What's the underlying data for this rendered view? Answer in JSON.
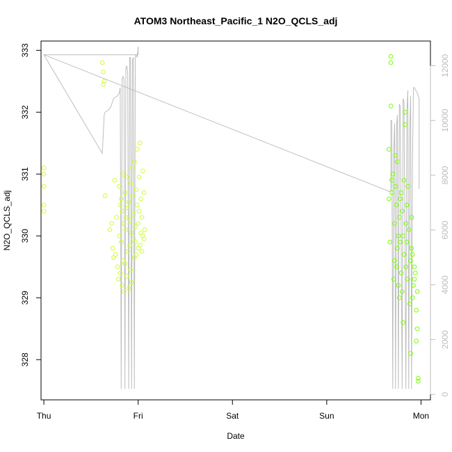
{
  "chart_data": {
    "type": "scatter",
    "title": "ATOM3 Northeast_Pacific_1 N2O_QCLS_adj",
    "xlabel": "Date",
    "ylabel": "N2O_QCLS_adj",
    "xlim": [
      -0.03,
      4.1
    ],
    "ylim": [
      327.35,
      333.15
    ],
    "y2lim": [
      -200,
      12900
    ],
    "x_ticks": [
      {
        "value": 0,
        "label": "Thu"
      },
      {
        "value": 1,
        "label": "Fri"
      },
      {
        "value": 2,
        "label": "Sat"
      },
      {
        "value": 3,
        "label": "Sun"
      },
      {
        "value": 4,
        "label": "Mon"
      }
    ],
    "y_ticks": [
      328,
      329,
      330,
      331,
      332,
      333
    ],
    "y2_ticks": [
      0,
      2000,
      4000,
      6000,
      8000,
      10000,
      12000
    ],
    "grid": false,
    "legend": "none",
    "colors": {
      "points_early": "#ccff33",
      "points_late": "#77ff00",
      "altitude": "#bdbdbd"
    },
    "series": [
      {
        "axis": "left",
        "style": "points",
        "values": [
          [
            0.0,
            331.1
          ],
          [
            0.0,
            331.0
          ],
          [
            0.0,
            330.8
          ],
          [
            0.0,
            330.5
          ],
          [
            0.0,
            330.4
          ],
          [
            0.62,
            332.8
          ],
          [
            0.63,
            332.65
          ],
          [
            0.63,
            332.45
          ],
          [
            0.64,
            332.5
          ],
          [
            0.65,
            330.65
          ],
          [
            0.7,
            330.1
          ],
          [
            0.72,
            330.2
          ],
          [
            0.73,
            329.8
          ],
          [
            0.74,
            329.65
          ],
          [
            0.75,
            330.9
          ],
          [
            0.76,
            329.7
          ],
          [
            0.77,
            330.3
          ],
          [
            0.78,
            329.5
          ],
          [
            0.79,
            329.3
          ],
          [
            0.8,
            330.0
          ],
          [
            0.8,
            330.8
          ],
          [
            0.81,
            329.4
          ],
          [
            0.81,
            330.5
          ],
          [
            0.82,
            329.9
          ],
          [
            0.82,
            330.6
          ],
          [
            0.83,
            329.2
          ],
          [
            0.83,
            330.4
          ],
          [
            0.84,
            329.6
          ],
          [
            0.84,
            331.0
          ],
          [
            0.85,
            330.2
          ],
          [
            0.85,
            329.1
          ],
          [
            0.86,
            330.7
          ],
          [
            0.86,
            329.55
          ],
          [
            0.87,
            330.3
          ],
          [
            0.87,
            330.1
          ],
          [
            0.88,
            329.35
          ],
          [
            0.88,
            330.95
          ],
          [
            0.89,
            329.75
          ],
          [
            0.89,
            330.45
          ],
          [
            0.9,
            329.15
          ],
          [
            0.9,
            330.55
          ],
          [
            0.91,
            329.85
          ],
          [
            0.91,
            330.25
          ],
          [
            0.92,
            329.45
          ],
          [
            0.92,
            330.85
          ],
          [
            0.93,
            330.05
          ],
          [
            0.93,
            329.25
          ],
          [
            0.94,
            331.1
          ],
          [
            0.94,
            330.65
          ],
          [
            0.95,
            329.95
          ],
          [
            0.95,
            330.35
          ],
          [
            0.96,
            329.65
          ],
          [
            0.96,
            331.2
          ],
          [
            0.97,
            330.15
          ],
          [
            0.97,
            329.9
          ],
          [
            0.98,
            330.75
          ],
          [
            0.98,
            329.7
          ],
          [
            0.99,
            330.5
          ],
          [
            0.99,
            331.4
          ],
          [
            1.0,
            330.2
          ],
          [
            1.0,
            329.8
          ],
          [
            1.01,
            330.95
          ],
          [
            1.01,
            330.4
          ],
          [
            1.02,
            329.85
          ],
          [
            1.02,
            331.5
          ],
          [
            1.03,
            330.6
          ],
          [
            1.03,
            330.05
          ],
          [
            1.04,
            329.75
          ],
          [
            1.04,
            330.3
          ],
          [
            1.05,
            331.05
          ],
          [
            1.05,
            330.0
          ],
          [
            1.06,
            329.95
          ],
          [
            1.06,
            330.7
          ],
          [
            1.07,
            330.1
          ],
          [
            3.68,
            332.9
          ],
          [
            3.68,
            332.8
          ],
          [
            3.68,
            332.1
          ],
          [
            3.66,
            330.6
          ],
          [
            3.66,
            331.4
          ],
          [
            3.67,
            329.9
          ],
          [
            3.69,
            330.9
          ],
          [
            3.69,
            330.7
          ],
          [
            3.7,
            331.0
          ],
          [
            3.71,
            329.3
          ],
          [
            3.72,
            330.2
          ],
          [
            3.72,
            329.6
          ],
          [
            3.73,
            331.3
          ],
          [
            3.73,
            330.8
          ],
          [
            3.74,
            329.5
          ],
          [
            3.74,
            330.5
          ],
          [
            3.75,
            331.2
          ],
          [
            3.75,
            329.8
          ],
          [
            3.76,
            330.0
          ],
          [
            3.76,
            329.2
          ],
          [
            3.77,
            330.3
          ],
          [
            3.77,
            329.0
          ],
          [
            3.78,
            330.6
          ],
          [
            3.78,
            329.9
          ],
          [
            3.79,
            329.4
          ],
          [
            3.79,
            330.7
          ],
          [
            3.8,
            329.1
          ],
          [
            3.8,
            330.4
          ],
          [
            3.81,
            328.6
          ],
          [
            3.81,
            330.0
          ],
          [
            3.82,
            329.7
          ],
          [
            3.82,
            330.9
          ],
          [
            3.83,
            332.0
          ],
          [
            3.83,
            331.8
          ],
          [
            3.84,
            330.2
          ],
          [
            3.84,
            329.5
          ],
          [
            3.85,
            330.5
          ],
          [
            3.85,
            329.9
          ],
          [
            3.86,
            330.8
          ],
          [
            3.86,
            329.3
          ],
          [
            3.87,
            330.1
          ],
          [
            3.88,
            328.9
          ],
          [
            3.89,
            329.6
          ],
          [
            3.89,
            328.1
          ],
          [
            3.9,
            330.3
          ],
          [
            3.9,
            329.8
          ],
          [
            3.91,
            329.0
          ],
          [
            3.92,
            329.2
          ],
          [
            3.93,
            329.5
          ],
          [
            3.94,
            329.4
          ],
          [
            3.95,
            328.8
          ],
          [
            3.95,
            328.3
          ],
          [
            3.96,
            329.1
          ],
          [
            3.97,
            327.7
          ],
          [
            3.97,
            327.65
          ],
          [
            3.96,
            328.5
          ],
          [
            3.93,
            329.3
          ],
          [
            3.91,
            329.7
          ]
        ]
      },
      {
        "axis": "right",
        "style": "line",
        "values": [
          [
            0.0,
            12400
          ],
          [
            0.98,
            12400
          ],
          [
            1.0,
            12400
          ],
          [
            1.0,
            12700
          ],
          [
            0.99,
            12300
          ],
          [
            0.98,
            12400
          ],
          [
            0.97,
            12400
          ],
          [
            0.96,
            200
          ],
          [
            0.95,
            12300
          ],
          [
            0.94,
            12200
          ],
          [
            0.93,
            200
          ],
          [
            0.92,
            12300
          ],
          [
            0.91,
            12300
          ],
          [
            0.9,
            200
          ],
          [
            0.89,
            11700
          ],
          [
            0.88,
            12000
          ],
          [
            0.87,
            11900
          ],
          [
            0.86,
            200
          ],
          [
            0.85,
            11500
          ],
          [
            0.84,
            11600
          ],
          [
            0.83,
            11500
          ],
          [
            0.82,
            200
          ],
          [
            0.81,
            11200
          ],
          [
            0.8,
            11000
          ],
          [
            0.78,
            10900
          ],
          [
            0.74,
            10800
          ],
          [
            0.73,
            10700
          ],
          [
            0.71,
            10500
          ],
          [
            0.69,
            10400
          ],
          [
            0.65,
            10300
          ],
          [
            0.64,
            10200
          ],
          [
            0.63,
            9500
          ],
          [
            0.62,
            8800
          ],
          [
            0.0,
            12400
          ],
          [
            3.67,
            7400
          ],
          [
            3.68,
            7500
          ],
          [
            3.68,
            10000
          ],
          [
            3.69,
            10000
          ],
          [
            3.7,
            200
          ],
          [
            3.71,
            8800
          ],
          [
            3.72,
            9900
          ],
          [
            3.73,
            200
          ],
          [
            3.74,
            9800
          ],
          [
            3.75,
            10200
          ],
          [
            3.76,
            200
          ],
          [
            3.77,
            10600
          ],
          [
            3.78,
            10500
          ],
          [
            3.8,
            200
          ],
          [
            3.81,
            10800
          ],
          [
            3.82,
            10700
          ],
          [
            3.84,
            200
          ],
          [
            3.85,
            10300
          ],
          [
            3.86,
            11100
          ],
          [
            3.87,
            200
          ],
          [
            3.88,
            9600
          ],
          [
            3.89,
            10900
          ],
          [
            3.9,
            200
          ],
          [
            3.91,
            8500
          ],
          [
            3.92,
            11200
          ],
          [
            3.93,
            11200
          ],
          [
            3.96,
            11000
          ],
          [
            3.97,
            10900
          ],
          [
            3.98,
            10800
          ],
          [
            3.98,
            7500
          ]
        ]
      }
    ]
  }
}
